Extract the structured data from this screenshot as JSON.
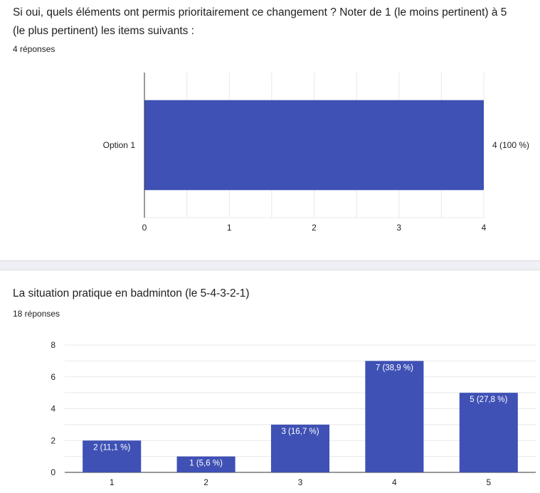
{
  "questions": [
    {
      "title": "Si oui, quels éléments ont permis prioritairement ce changement ? Noter de 1 (le moins pertinent) à 5 (le plus pertinent) les items suivants :",
      "responses": "4 réponses"
    },
    {
      "title": "La situation pratique en badminton (le 5-4-3-2-1)",
      "responses": "18 réponses"
    }
  ],
  "chart_data": [
    {
      "type": "bar",
      "orientation": "horizontal",
      "categories": [
        "Option 1"
      ],
      "values": [
        4
      ],
      "value_labels": [
        "4 (100 %)"
      ],
      "xlim": [
        0,
        4
      ],
      "xticks": [
        "0",
        "1",
        "2",
        "3",
        "4"
      ],
      "grid": true,
      "bar_color": "#3f51b5"
    },
    {
      "type": "bar",
      "orientation": "vertical",
      "categories": [
        "1",
        "2",
        "3",
        "4",
        "5"
      ],
      "values": [
        2,
        1,
        3,
        7,
        5
      ],
      "value_labels": [
        "2 (11,1 %)",
        "1 (5,6 %)",
        "3 (16,7 %)",
        "7 (38,9 %)",
        "5 (27,8 %)"
      ],
      "ylim": [
        0,
        8
      ],
      "yticks": [
        "0",
        "2",
        "4",
        "6",
        "8"
      ],
      "grid": true,
      "bar_color": "#3f51b5"
    }
  ]
}
